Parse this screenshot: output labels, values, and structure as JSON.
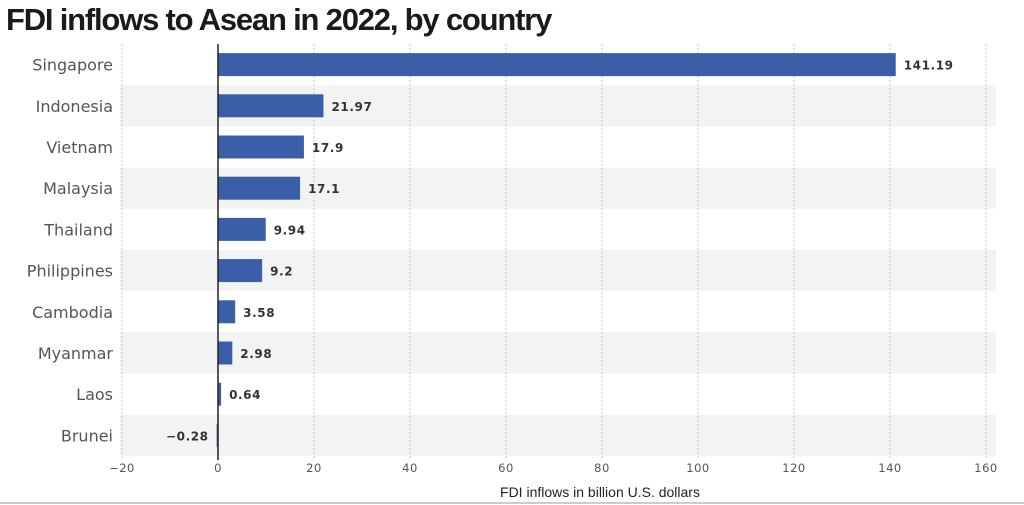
{
  "chart_data": {
    "type": "bar",
    "orientation": "horizontal",
    "title": "FDI inflows to Asean in 2022, by country",
    "xlabel": "FDI inflows in billion U.S. dollars",
    "ylabel": "",
    "categories": [
      "Singapore",
      "Indonesia",
      "Vietnam",
      "Malaysia",
      "Thailand",
      "Philippines",
      "Cambodia",
      "Myanmar",
      "Laos",
      "Brunei"
    ],
    "values": [
      141.19,
      21.97,
      17.9,
      17.1,
      9.94,
      9.2,
      3.58,
      2.98,
      0.64,
      -0.28
    ],
    "value_labels": [
      "141.19",
      "21.97",
      "17.9",
      "17.1",
      "9.94",
      "9.2",
      "3.58",
      "2.98",
      "0.64",
      "−0.28"
    ],
    "xlim": [
      -20,
      160
    ],
    "xticks": [
      -20,
      0,
      20,
      40,
      60,
      80,
      100,
      120,
      140,
      160
    ],
    "xtick_labels": [
      "−20",
      "0",
      "20",
      "40",
      "60",
      "80",
      "100",
      "120",
      "140",
      "160"
    ],
    "grid": true,
    "legend": "none",
    "bar_color": "#3a5fa8",
    "stripe_color": "#f3f3f3"
  }
}
